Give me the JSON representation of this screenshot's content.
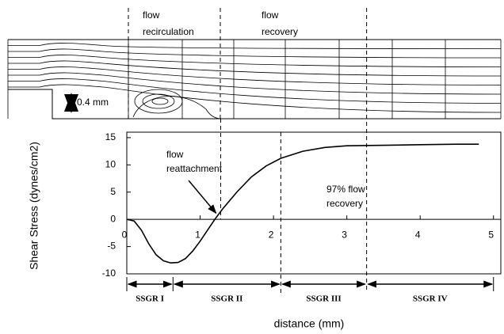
{
  "chart_data": {
    "type": "line",
    "top_labels": {
      "recirculation": [
        "flow",
        "recirculation"
      ],
      "recovery": [
        "flow",
        "recovery"
      ],
      "step_height": "0.4 mm"
    },
    "y_label": "Shear Stress (dynes/cm2)",
    "x_label": "distance (mm)",
    "annotations": {
      "reattachment": [
        "flow",
        "reattachment"
      ],
      "recovery": [
        "97% flow",
        "recovery"
      ]
    },
    "reattachment_x": 1.28,
    "regions": [
      "SSGR I",
      "SSGR II",
      "SSGR III",
      "SSGR IV"
    ],
    "region_bounds": [
      0,
      0.63,
      2.1,
      3.27,
      5.0
    ],
    "x": [
      0,
      0.1,
      0.2,
      0.3,
      0.4,
      0.5,
      0.6,
      0.7,
      0.8,
      0.9,
      1.0,
      1.1,
      1.2,
      1.3,
      1.5,
      1.7,
      1.9,
      2.1,
      2.4,
      2.7,
      3.0,
      3.5,
      4.0,
      4.5,
      4.8
    ],
    "series": [
      {
        "color": "#000000",
        "values": [
          0,
          -0.3,
          -2,
          -4.5,
          -6.5,
          -7.6,
          -8.0,
          -7.9,
          -7.2,
          -5.8,
          -4,
          -2,
          0,
          1.8,
          5,
          7.8,
          9.8,
          11.2,
          12.5,
          13.2,
          13.5,
          13.6,
          13.7,
          13.8,
          13.8
        ]
      }
    ],
    "xlim": [
      0,
      5.1
    ],
    "ylim": [
      -10,
      16
    ],
    "xticks": [
      0,
      1,
      2,
      3,
      4,
      5
    ],
    "yticks": [
      -10,
      -5,
      0,
      5,
      10,
      15
    ]
  }
}
